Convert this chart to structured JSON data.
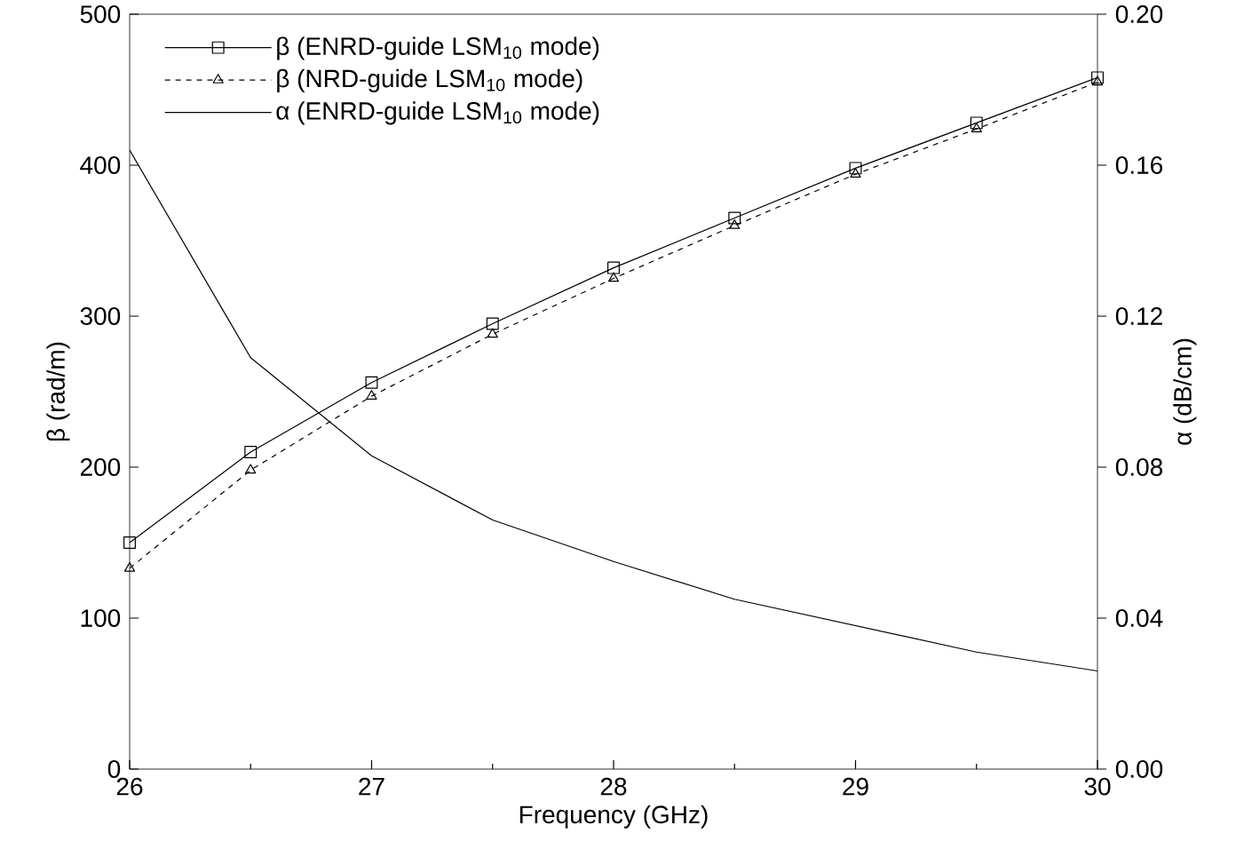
{
  "chart_data": {
    "type": "line",
    "xlabel": "Frequency (GHz)",
    "ylabel": "β (rad/m)",
    "y2label": "α (dB/cm)",
    "x": [
      26,
      26.5,
      27,
      27.5,
      28,
      28.5,
      29,
      29.5,
      30
    ],
    "xlim": [
      26,
      30
    ],
    "xticks": [
      26,
      27,
      28,
      29,
      30
    ],
    "ylim": [
      0,
      500
    ],
    "yticks": [
      0,
      100,
      200,
      300,
      400,
      500
    ],
    "y2lim": [
      0,
      0.2
    ],
    "y2ticks": [
      {
        "value": 0,
        "label": "0.00"
      },
      {
        "value": 0.04,
        "label": "0.04"
      },
      {
        "value": 0.08,
        "label": "0.08"
      },
      {
        "value": 0.12,
        "label": "0.12"
      },
      {
        "value": 0.16,
        "label": "0.16"
      },
      {
        "value": 0.2,
        "label": "0.20"
      }
    ],
    "grid": false,
    "legend": "top left",
    "series": [
      {
        "name": "β (ENRD-guide LSM$_{10}$ mode)",
        "color": "#000000",
        "marker": "square",
        "line_style": "solid",
        "values": [
          150,
          210,
          256,
          295,
          332,
          365,
          398,
          428,
          458
        ]
      },
      {
        "name": "β (NRD-guide LSM$_{10}$ mode)",
        "color": "#000000",
        "marker": "triangle",
        "line_style": "dashed",
        "values": [
          133,
          198,
          247,
          288,
          325,
          360,
          394,
          424,
          455
        ]
      },
      {
        "name": "α (ENRD-guide LSM$_{10}$ mode)",
        "color": "#000000",
        "marker": "none",
        "line_style": "solid",
        "axis": "y2",
        "values": [
          0.164,
          0.109,
          0.083,
          0.066,
          0.055,
          0.045,
          0.038,
          0.031,
          0.026
        ]
      }
    ]
  }
}
